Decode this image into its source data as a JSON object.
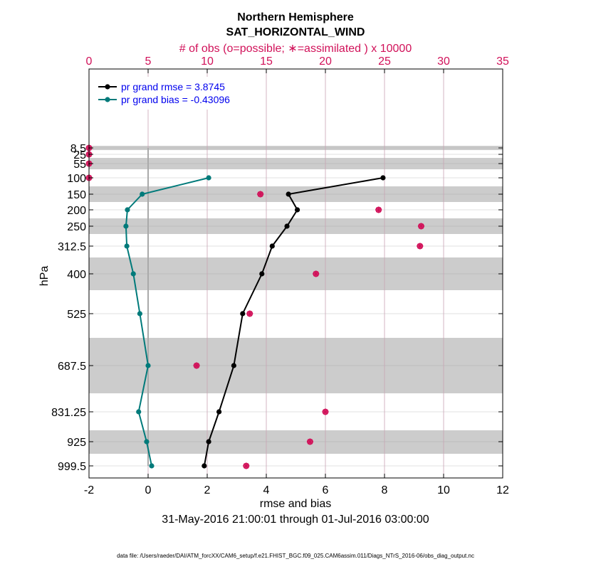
{
  "chart_data": {
    "type": "line",
    "title": "Northern Hemisphere",
    "subtitle": "SAT_HORIZONTAL_WIND",
    "top_axis_label": "# of obs (o=possible; ∗=assimilated ) x 10000",
    "xlabel": "rmse and bias",
    "ylabel": "hPa",
    "date_range": "31-May-2016 21:00:01 through 01-Jul-2016 03:00:00",
    "footnote": "data file: /Users/raeder/DAI/ATM_forcXX/CAM6_setup/f.e21.FHIST_BGC.f09_025.CAM6assim.011/Diags_NTrS_2016-06/obs_diag_output.nc",
    "xlim": [
      -2,
      12
    ],
    "xticks": [
      -2,
      0,
      2,
      4,
      6,
      8,
      10,
      12
    ],
    "top_xlim": [
      0,
      35
    ],
    "top_xticks": [
      0,
      5,
      10,
      15,
      20,
      25,
      30,
      35
    ],
    "levels": [
      8.5,
      25,
      55,
      100,
      150,
      200,
      250,
      312.5,
      400,
      525,
      687.5,
      831.25,
      925,
      999.5
    ],
    "level_labels": [
      "8.5",
      "25",
      "55",
      "100",
      "150",
      "200",
      "250",
      "312.5",
      "400",
      "525",
      "687.5",
      "831.25",
      "925",
      "999.5"
    ],
    "series": [
      {
        "name": "pr grand rmse",
        "legend": "pr grand rmse = 3.8745",
        "color": "#000000",
        "levels": [
          100,
          150,
          200,
          250,
          312.5,
          400,
          525,
          687.5,
          831.25,
          925,
          999.5
        ],
        "values": [
          7.95,
          4.75,
          5.05,
          4.7,
          4.2,
          3.85,
          3.2,
          2.9,
          2.4,
          2.05,
          1.9
        ]
      },
      {
        "name": "pr grand bias",
        "legend": "pr grand bias = -0.43096",
        "color": "#007a7a",
        "levels": [
          100,
          150,
          200,
          250,
          312.5,
          400,
          525,
          687.5,
          831.25,
          925,
          999.5
        ],
        "values": [
          2.05,
          -0.2,
          -0.7,
          -0.75,
          -0.72,
          -0.5,
          -0.28,
          0.0,
          -0.32,
          -0.05,
          0.12
        ]
      }
    ],
    "obs_possible": {
      "levels": [
        8.5,
        25,
        55,
        100,
        150,
        200,
        250,
        312.5,
        400,
        525,
        687.5,
        831.25,
        925,
        999.5
      ],
      "values": [
        0,
        0,
        0,
        0,
        14.5,
        24.5,
        28.1,
        28.0,
        19.2,
        13.6,
        9.1,
        20.0,
        18.7,
        13.3
      ]
    },
    "obs_assimilated": {
      "levels": [
        8.5,
        25,
        55,
        100,
        150,
        200,
        250,
        312.5,
        400,
        525,
        687.5,
        831.25,
        925,
        999.5
      ],
      "values": [
        0,
        0,
        0,
        0,
        14.5,
        24.5,
        28.1,
        28.0,
        19.2,
        13.6,
        9.1,
        20.0,
        18.7,
        13.3
      ]
    },
    "colors": {
      "top_axis": "#d11159",
      "obs_marker": "#d11159",
      "band": "#cccccc"
    }
  }
}
